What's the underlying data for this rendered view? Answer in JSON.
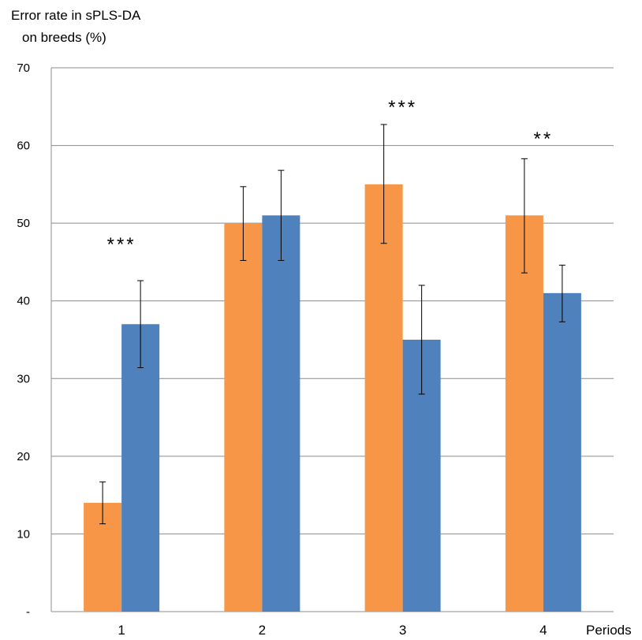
{
  "chart_data": {
    "type": "bar",
    "ylabel_lines": [
      "Error rate in sPLS-DA",
      "on breeds (%)"
    ],
    "xlabel": "Periods",
    "categories": [
      "1",
      "2",
      "3",
      "4"
    ],
    "yticks": [
      "-",
      "10",
      "20",
      "30",
      "40",
      "50",
      "60",
      "70"
    ],
    "ylim": [
      0,
      70
    ],
    "grid": true,
    "legend": "none",
    "series": [
      {
        "color": "#F79646",
        "values": [
          14,
          50,
          55,
          51
        ],
        "err_low": [
          11.3,
          45.2,
          47.4,
          43.6
        ],
        "err_high": [
          16.7,
          54.7,
          62.7,
          58.3
        ]
      },
      {
        "color": "#4F81BD",
        "values": [
          37,
          51,
          35,
          41
        ],
        "err_low": [
          31.4,
          45.2,
          28.0,
          37.3
        ],
        "err_high": [
          42.6,
          56.8,
          42.0,
          44.6
        ]
      }
    ],
    "annotations": [
      "***",
      "",
      "***",
      "**"
    ]
  }
}
